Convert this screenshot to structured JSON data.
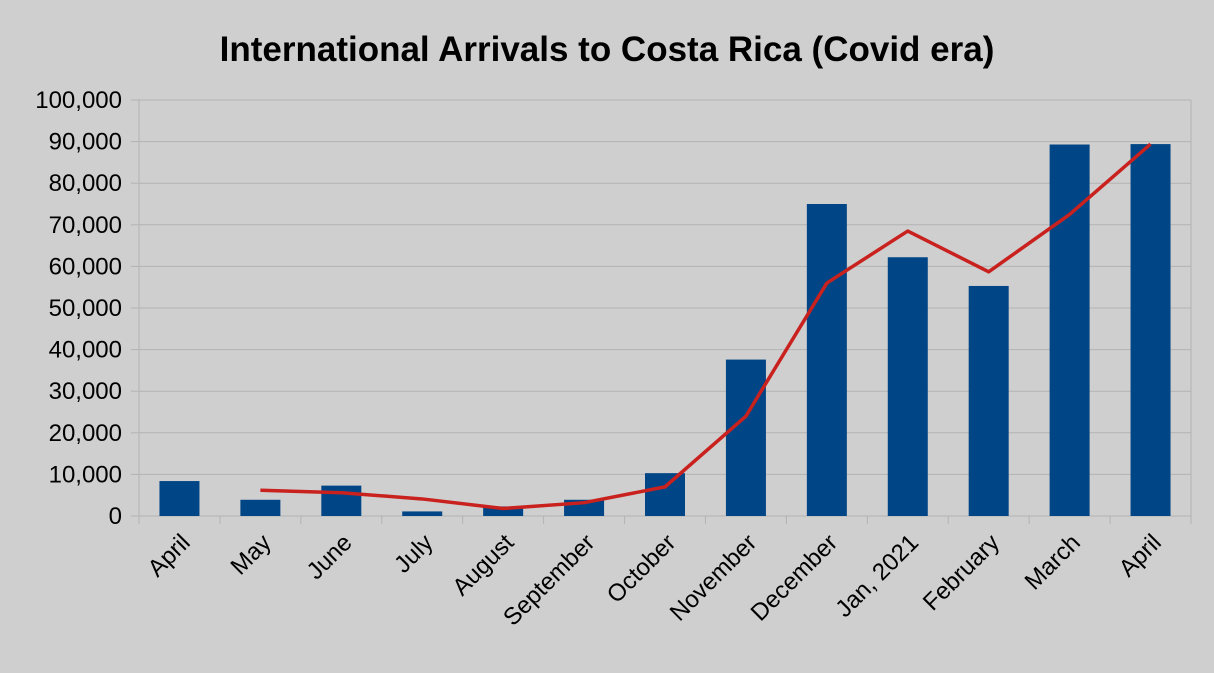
{
  "chart_data": {
    "type": "bar",
    "title": "International Arrivals to Costa Rica (Covid era)",
    "xlabel": "",
    "ylabel": "",
    "categories": [
      "April",
      "May",
      "June",
      "July",
      "August",
      "September",
      "October",
      "November",
      "December",
      "Jan, 2021",
      "February",
      "March",
      "April"
    ],
    "series": [
      {
        "type": "bar",
        "color": "#004586",
        "values": [
          8400,
          3900,
          7300,
          1100,
          2300,
          3900,
          10300,
          37600,
          75000,
          62200,
          55300,
          89300,
          89400
        ]
      },
      {
        "type": "line",
        "color": "#c9211e",
        "values": [
          null,
          6200,
          5600,
          4100,
          1800,
          3200,
          7000,
          24000,
          56000,
          68500,
          58700,
          72500,
          89400
        ]
      }
    ],
    "ylim": [
      0,
      100000
    ],
    "yticks": [
      0,
      10000,
      20000,
      30000,
      40000,
      50000,
      60000,
      70000,
      80000,
      90000,
      100000
    ],
    "ytick_labels": [
      "0",
      "10,000",
      "20,000",
      "30,000",
      "40,000",
      "50,000",
      "60,000",
      "70,000",
      "80,000",
      "90,000",
      "100,000"
    ],
    "grid": true,
    "legend": "none"
  }
}
